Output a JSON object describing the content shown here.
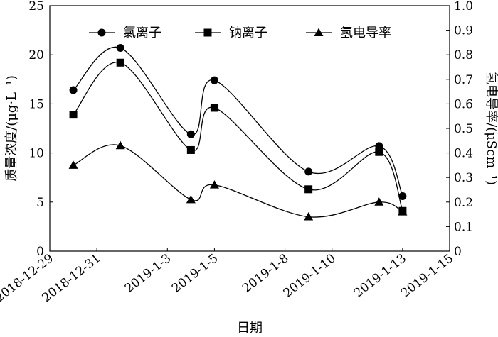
{
  "chart_data": {
    "type": "line",
    "xlabel": "日期",
    "ylabel_left": "质量浓度/(μg·L⁻¹)",
    "ylabel_right": "氢电导率/(μScm⁻¹)",
    "x_ticks": [
      "2018-12-29",
      "2018-12-31",
      "2019-1-3",
      "2019-1-5",
      "2019-1-8",
      "2019-1-10",
      "2019-1-13",
      "2019-1-15"
    ],
    "y_left_ticks": [
      "0",
      "5",
      "10",
      "15",
      "20",
      "25"
    ],
    "y_right_ticks": [
      "0",
      "0.1",
      "0.2",
      "0.3",
      "0.4",
      "0.5",
      "0.6",
      "0.7",
      "0.8",
      "0.9",
      "1.0"
    ],
    "ylim_left": [
      0,
      25
    ],
    "ylim_right": [
      0,
      1.0
    ],
    "grid": false,
    "legend_position": "top",
    "x": [
      "2018-12-30",
      "2019-1-1",
      "2019-1-4",
      "2019-1-5",
      "2019-1-9",
      "2019-1-12",
      "2019-1-13"
    ],
    "series": [
      {
        "name": "氯离子",
        "marker": "circle",
        "axis": "left",
        "values": [
          16.4,
          20.7,
          11.9,
          17.4,
          8.1,
          10.7,
          5.6
        ]
      },
      {
        "name": "钠离子",
        "marker": "square",
        "axis": "left",
        "values": [
          13.9,
          19.2,
          10.3,
          14.6,
          6.3,
          10.1,
          4.1
        ]
      },
      {
        "name": "氢电导率",
        "marker": "triangle",
        "axis": "right",
        "values": [
          0.35,
          0.43,
          0.21,
          0.27,
          0.14,
          0.2,
          0.16
        ]
      }
    ]
  }
}
